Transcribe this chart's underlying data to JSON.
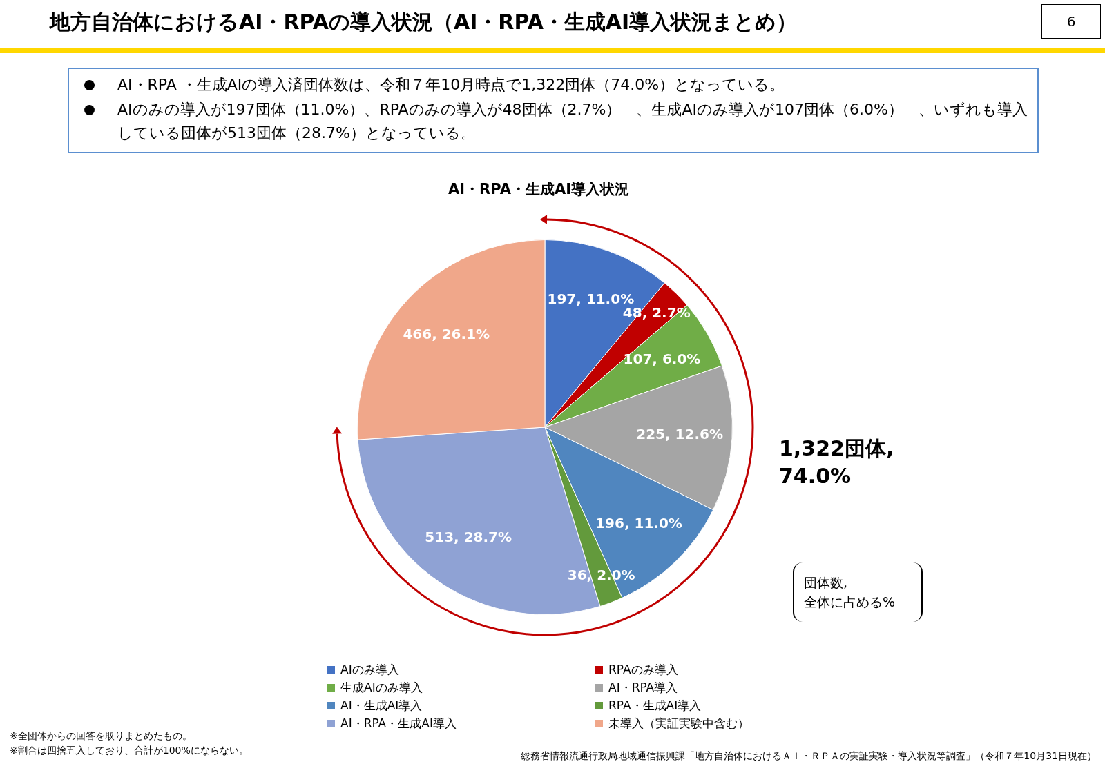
{
  "chart_data": {
    "type": "pie",
    "title": "地方自治体におけるAI・RPAの導入状況（AI・RPA・生成AI導入状況まとめ）",
    "subtitle": "AI・RPA・生成AI導入状況",
    "categories": [
      "AIのみ導入",
      "RPAのみ導入",
      "生成AIのみ導入",
      "AI・RPA導入",
      "AI・生成AI導入",
      "RPA・生成AI導入",
      "AI・RPA・生成AI導入",
      "未導入（実証実験中含む）"
    ],
    "values": [
      197,
      48,
      107,
      225,
      196,
      36,
      513,
      466
    ],
    "colors": [
      "#4472c4",
      "#c00000",
      "#70ad47",
      "#a5a5a5",
      "#5086bf",
      "#639a3c",
      "#8fa2d4",
      "#f0a78a"
    ],
    "value_labels": [
      "197, 11.0%",
      "48, 2.7%",
      "107, 6.0%",
      "225, 12.6%",
      "196, 11.0%",
      "36, 2.0%",
      "513, 28.7%",
      "466, 26.1%"
    ],
    "legend": "bottom",
    "annotations": [
      "6",
      "AI・RPA ・生成AIの導入済団体数は、令和７年10月時点で1,322団体（74.0%）となっている。",
      "AIのみの導入が197団体（11.0%）、RPAのみの導入が48団体（2.7%）　、生成AIのみ導入が107団体（6.0%）　、いずれも導入している団体が513団体（28.7%）となっている。",
      "1,322団体,\n74.0%",
      "団体数,\n全体に占める%",
      "※全団体からの回答を取りまとめたもの。",
      "※割合は四捨五入しており、合計が100%にならない。",
      "総務省情報流通行政局地域通信振興課「地方自治体におけるＡＩ・ＲＰＡの実証実験・導入状況等調査」（令和７年10月31日現在）"
    ]
  }
}
